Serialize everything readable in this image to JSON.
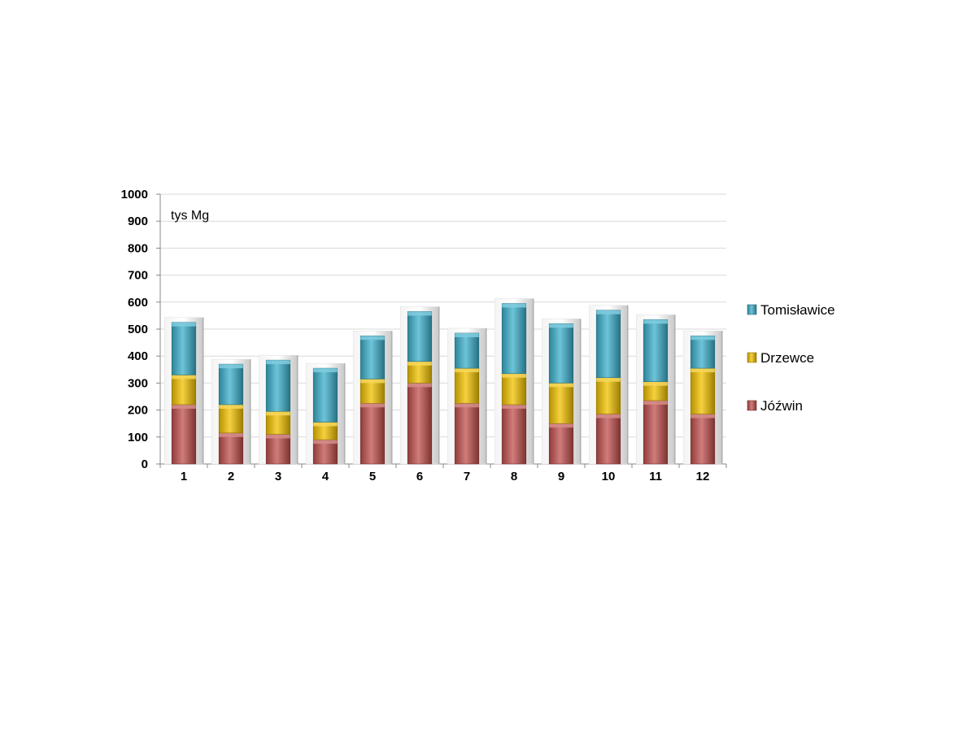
{
  "chart_data": {
    "type": "bar",
    "stacked": true,
    "unit_label": "tys Mg",
    "categories": [
      "1",
      "2",
      "3",
      "4",
      "5",
      "6",
      "7",
      "8",
      "9",
      "10",
      "11",
      "12"
    ],
    "series": [
      {
        "name": "Jóźwin",
        "color": "#c0504d",
        "values": [
          220,
          115,
          110,
          90,
          225,
          300,
          225,
          220,
          150,
          185,
          235,
          185
        ]
      },
      {
        "name": "Drzewce",
        "color": "#f2c200",
        "values": [
          110,
          105,
          85,
          65,
          90,
          80,
          130,
          115,
          150,
          135,
          70,
          170
        ]
      },
      {
        "name": "Tomisławice",
        "color": "#3cb0cc",
        "values": [
          195,
          150,
          190,
          200,
          160,
          185,
          130,
          260,
          220,
          250,
          230,
          120
        ]
      }
    ],
    "yticks": [
      0,
      100,
      200,
      300,
      400,
      500,
      600,
      700,
      800,
      900,
      1000
    ],
    "ylim": [
      0,
      1000
    ],
    "grid": true,
    "legend_position": "right"
  }
}
